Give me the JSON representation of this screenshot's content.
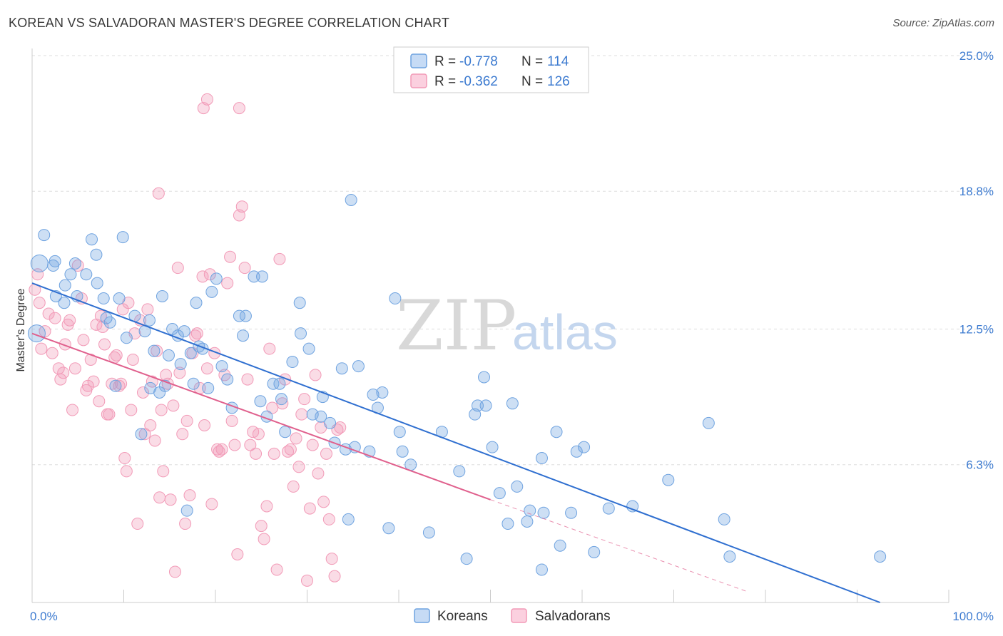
{
  "title": "KOREAN VS SALVADORAN MASTER'S DEGREE CORRELATION CHART",
  "source": "Source: ZipAtlas.com",
  "watermark": {
    "zip": "ZIP",
    "atlas": "atlas"
  },
  "colors": {
    "korean": "#6fa3e0",
    "korean_line": "#2f6fd0",
    "salvadoran": "#f29ab7",
    "salvadoran_line": "#e0608d",
    "axis_label": "#3d7bd0",
    "grid": "#dddddd"
  },
  "legend": {
    "rows": [
      {
        "r_label": "R = ",
        "r_value": "-0.778",
        "n_label": "N = ",
        "n_value": "114"
      },
      {
        "r_label": "R = ",
        "r_value": "-0.362",
        "n_label": "N = ",
        "n_value": "126"
      }
    ]
  },
  "chart_data": {
    "type": "scatter",
    "title": "KOREAN VS SALVADORAN MASTER'S DEGREE CORRELATION CHART",
    "xlabel": "",
    "ylabel": "Master's Degree",
    "xlim": [
      0,
      100
    ],
    "ylim": [
      0,
      25
    ],
    "x_tick_labels": [
      "0.0%",
      "100.0%"
    ],
    "y_ticks": [
      6.3,
      12.5,
      18.8,
      25.0
    ],
    "y_tick_labels": [
      "6.3%",
      "12.5%",
      "18.8%",
      "25.0%"
    ],
    "grid": true,
    "legend_position": "top-center",
    "series": [
      {
        "name": "Koreans",
        "color": "#6fa3e0",
        "trend": {
          "x0": 0,
          "y0": 14.6,
          "x1": 92.5,
          "y1": 0.0
        },
        "points": [
          [
            0.5,
            12.3
          ],
          [
            0.8,
            15.5
          ],
          [
            1.3,
            16.8
          ],
          [
            2.3,
            15.4
          ],
          [
            2.6,
            14.0
          ],
          [
            2.5,
            15.6
          ],
          [
            3.6,
            14.5
          ],
          [
            4.7,
            15.5
          ],
          [
            3.5,
            13.7
          ],
          [
            4.2,
            15.0
          ],
          [
            4.9,
            14.0
          ],
          [
            5.9,
            15.0
          ],
          [
            6.5,
            16.6
          ],
          [
            7.0,
            15.9
          ],
          [
            7.1,
            14.6
          ],
          [
            7.8,
            13.9
          ],
          [
            8.1,
            13.0
          ],
          [
            8.5,
            12.8
          ],
          [
            9.1,
            9.9
          ],
          [
            9.5,
            13.9
          ],
          [
            9.9,
            16.7
          ],
          [
            10.3,
            12.1
          ],
          [
            11.2,
            13.1
          ],
          [
            11.9,
            7.7
          ],
          [
            12.3,
            12.4
          ],
          [
            12.8,
            12.9
          ],
          [
            12.9,
            9.8
          ],
          [
            13.3,
            11.5
          ],
          [
            13.9,
            9.6
          ],
          [
            14.2,
            14.0
          ],
          [
            14.5,
            9.9
          ],
          [
            14.9,
            11.3
          ],
          [
            15.3,
            12.5
          ],
          [
            15.9,
            12.2
          ],
          [
            16.2,
            10.9
          ],
          [
            16.6,
            12.4
          ],
          [
            16.9,
            4.2
          ],
          [
            17.3,
            11.4
          ],
          [
            17.6,
            10.0
          ],
          [
            17.9,
            13.7
          ],
          [
            18.2,
            11.7
          ],
          [
            18.6,
            11.6
          ],
          [
            19.2,
            9.8
          ],
          [
            19.6,
            14.2
          ],
          [
            20.1,
            14.8
          ],
          [
            20.7,
            10.8
          ],
          [
            21.3,
            10.2
          ],
          [
            21.8,
            8.9
          ],
          [
            22.6,
            13.1
          ],
          [
            23.0,
            12.2
          ],
          [
            23.3,
            13.1
          ],
          [
            24.2,
            14.9
          ],
          [
            24.9,
            9.2
          ],
          [
            25.1,
            14.9
          ],
          [
            25.6,
            8.5
          ],
          [
            26.3,
            10.0
          ],
          [
            27.0,
            10.0
          ],
          [
            27.2,
            9.3
          ],
          [
            27.6,
            7.8
          ],
          [
            28.4,
            11.0
          ],
          [
            29.2,
            13.7
          ],
          [
            29.3,
            12.3
          ],
          [
            30.2,
            11.6
          ],
          [
            30.6,
            8.6
          ],
          [
            31.5,
            8.5
          ],
          [
            31.7,
            9.4
          ],
          [
            32.5,
            8.2
          ],
          [
            33.0,
            7.3
          ],
          [
            33.8,
            10.7
          ],
          [
            34.2,
            7.0
          ],
          [
            34.5,
            3.8
          ],
          [
            35.2,
            7.1
          ],
          [
            35.6,
            10.8
          ],
          [
            36.8,
            6.9
          ],
          [
            37.2,
            9.5
          ],
          [
            37.7,
            8.9
          ],
          [
            38.2,
            9.6
          ],
          [
            38.9,
            3.4
          ],
          [
            39.6,
            13.9
          ],
          [
            40.1,
            7.8
          ],
          [
            40.4,
            6.9
          ],
          [
            41.3,
            6.3
          ],
          [
            43.3,
            3.2
          ],
          [
            44.7,
            7.8
          ],
          [
            46.6,
            6.0
          ],
          [
            47.4,
            2.0
          ],
          [
            48.3,
            8.6
          ],
          [
            48.6,
            9.0
          ],
          [
            49.3,
            10.3
          ],
          [
            49.5,
            9.0
          ],
          [
            50.2,
            7.1
          ],
          [
            51.0,
            5.0
          ],
          [
            51.9,
            3.6
          ],
          [
            52.4,
            9.1
          ],
          [
            52.9,
            5.3
          ],
          [
            54.0,
            3.7
          ],
          [
            54.3,
            4.2
          ],
          [
            55.6,
            1.5
          ],
          [
            55.6,
            6.6
          ],
          [
            55.8,
            4.1
          ],
          [
            57.2,
            7.8
          ],
          [
            57.6,
            2.6
          ],
          [
            58.8,
            4.1
          ],
          [
            59.4,
            6.9
          ],
          [
            60.2,
            7.1
          ],
          [
            61.3,
            2.3
          ],
          [
            62.9,
            4.3
          ],
          [
            65.5,
            4.4
          ],
          [
            69.4,
            5.6
          ],
          [
            73.8,
            8.2
          ],
          [
            75.5,
            3.8
          ],
          [
            76.1,
            2.1
          ],
          [
            92.5,
            2.1
          ],
          [
            34.8,
            18.4
          ]
        ]
      },
      {
        "name": "Salvadorans",
        "color": "#f29ab7",
        "trend": {
          "x0": 0,
          "y0": 12.3,
          "x1": 50.0,
          "y1": 4.7
        },
        "dashed_extension": {
          "x0": 50.0,
          "y0": 4.7,
          "x1": 78.0,
          "y1": 0.5
        },
        "points": [
          [
            0.3,
            14.3
          ],
          [
            0.6,
            15.0
          ],
          [
            0.8,
            13.7
          ],
          [
            1.0,
            11.6
          ],
          [
            1.4,
            12.4
          ],
          [
            1.8,
            13.2
          ],
          [
            2.2,
            11.4
          ],
          [
            2.5,
            13.0
          ],
          [
            2.9,
            10.7
          ],
          [
            3.1,
            10.2
          ],
          [
            3.4,
            10.5
          ],
          [
            3.6,
            11.8
          ],
          [
            3.9,
            12.7
          ],
          [
            4.1,
            12.9
          ],
          [
            4.4,
            8.8
          ],
          [
            4.7,
            10.7
          ],
          [
            5.0,
            15.4
          ],
          [
            5.4,
            13.9
          ],
          [
            5.6,
            12.0
          ],
          [
            5.9,
            9.7
          ],
          [
            6.1,
            9.9
          ],
          [
            6.4,
            11.1
          ],
          [
            6.7,
            10.1
          ],
          [
            7.0,
            12.7
          ],
          [
            7.3,
            9.2
          ],
          [
            7.5,
            13.1
          ],
          [
            7.7,
            12.6
          ],
          [
            7.9,
            11.8
          ],
          [
            8.2,
            8.6
          ],
          [
            8.4,
            8.6
          ],
          [
            8.7,
            10.0
          ],
          [
            9.0,
            11.2
          ],
          [
            9.2,
            11.3
          ],
          [
            9.5,
            9.9
          ],
          [
            9.7,
            10.0
          ],
          [
            9.9,
            13.4
          ],
          [
            10.1,
            6.6
          ],
          [
            10.3,
            6.0
          ],
          [
            10.5,
            13.7
          ],
          [
            10.8,
            8.8
          ],
          [
            11.0,
            11.1
          ],
          [
            11.2,
            12.3
          ],
          [
            11.5,
            3.6
          ],
          [
            11.8,
            12.9
          ],
          [
            12.1,
            9.6
          ],
          [
            12.3,
            7.7
          ],
          [
            12.6,
            13.4
          ],
          [
            12.9,
            8.1
          ],
          [
            13.1,
            10.1
          ],
          [
            13.4,
            7.4
          ],
          [
            13.6,
            11.5
          ],
          [
            13.9,
            4.8
          ],
          [
            14.1,
            8.8
          ],
          [
            14.3,
            6.0
          ],
          [
            14.6,
            10.4
          ],
          [
            14.8,
            10.0
          ],
          [
            15.1,
            4.7
          ],
          [
            15.4,
            9.0
          ],
          [
            15.6,
            1.4
          ],
          [
            15.9,
            15.3
          ],
          [
            16.1,
            10.5
          ],
          [
            16.4,
            7.7
          ],
          [
            16.7,
            3.6
          ],
          [
            16.9,
            8.3
          ],
          [
            17.2,
            4.9
          ],
          [
            17.5,
            11.4
          ],
          [
            17.8,
            12.2
          ],
          [
            18.0,
            12.3
          ],
          [
            18.3,
            9.8
          ],
          [
            18.6,
            14.9
          ],
          [
            18.8,
            8.1
          ],
          [
            19.1,
            10.7
          ],
          [
            19.4,
            15.0
          ],
          [
            19.6,
            4.5
          ],
          [
            19.9,
            11.4
          ],
          [
            20.2,
            7.0
          ],
          [
            20.4,
            6.9
          ],
          [
            20.7,
            7.0
          ],
          [
            21.0,
            10.4
          ],
          [
            21.3,
            14.6
          ],
          [
            21.6,
            15.8
          ],
          [
            21.8,
            8.3
          ],
          [
            22.1,
            7.2
          ],
          [
            22.4,
            2.2
          ],
          [
            22.6,
            17.7
          ],
          [
            22.9,
            18.1
          ],
          [
            23.2,
            15.3
          ],
          [
            23.5,
            10.2
          ],
          [
            23.8,
            7.2
          ],
          [
            24.1,
            7.8
          ],
          [
            24.4,
            6.8
          ],
          [
            24.7,
            7.7
          ],
          [
            25.0,
            3.5
          ],
          [
            25.3,
            2.9
          ],
          [
            25.6,
            4.4
          ],
          [
            25.9,
            11.6
          ],
          [
            26.2,
            8.9
          ],
          [
            26.4,
            6.8
          ],
          [
            26.7,
            1.5
          ],
          [
            27.0,
            15.7
          ],
          [
            27.3,
            9.1
          ],
          [
            27.6,
            10.2
          ],
          [
            27.9,
            6.9
          ],
          [
            28.2,
            7.0
          ],
          [
            28.5,
            5.3
          ],
          [
            28.8,
            7.5
          ],
          [
            29.1,
            6.2
          ],
          [
            29.4,
            8.6
          ],
          [
            29.7,
            9.3
          ],
          [
            30.0,
            1.0
          ],
          [
            30.3,
            4.3
          ],
          [
            30.6,
            7.2
          ],
          [
            30.9,
            10.4
          ],
          [
            31.2,
            5.9
          ],
          [
            31.5,
            8.0
          ],
          [
            31.8,
            4.6
          ],
          [
            32.1,
            6.8
          ],
          [
            32.4,
            3.8
          ],
          [
            32.7,
            2.0
          ],
          [
            33.0,
            1.2
          ],
          [
            33.3,
            7.9
          ],
          [
            33.6,
            8.0
          ],
          [
            19.1,
            23.0
          ],
          [
            18.7,
            22.6
          ],
          [
            22.6,
            22.6
          ],
          [
            13.8,
            18.7
          ]
        ]
      }
    ]
  },
  "bottom_legend": [
    {
      "label": "Koreans"
    },
    {
      "label": "Salvadorans"
    }
  ]
}
